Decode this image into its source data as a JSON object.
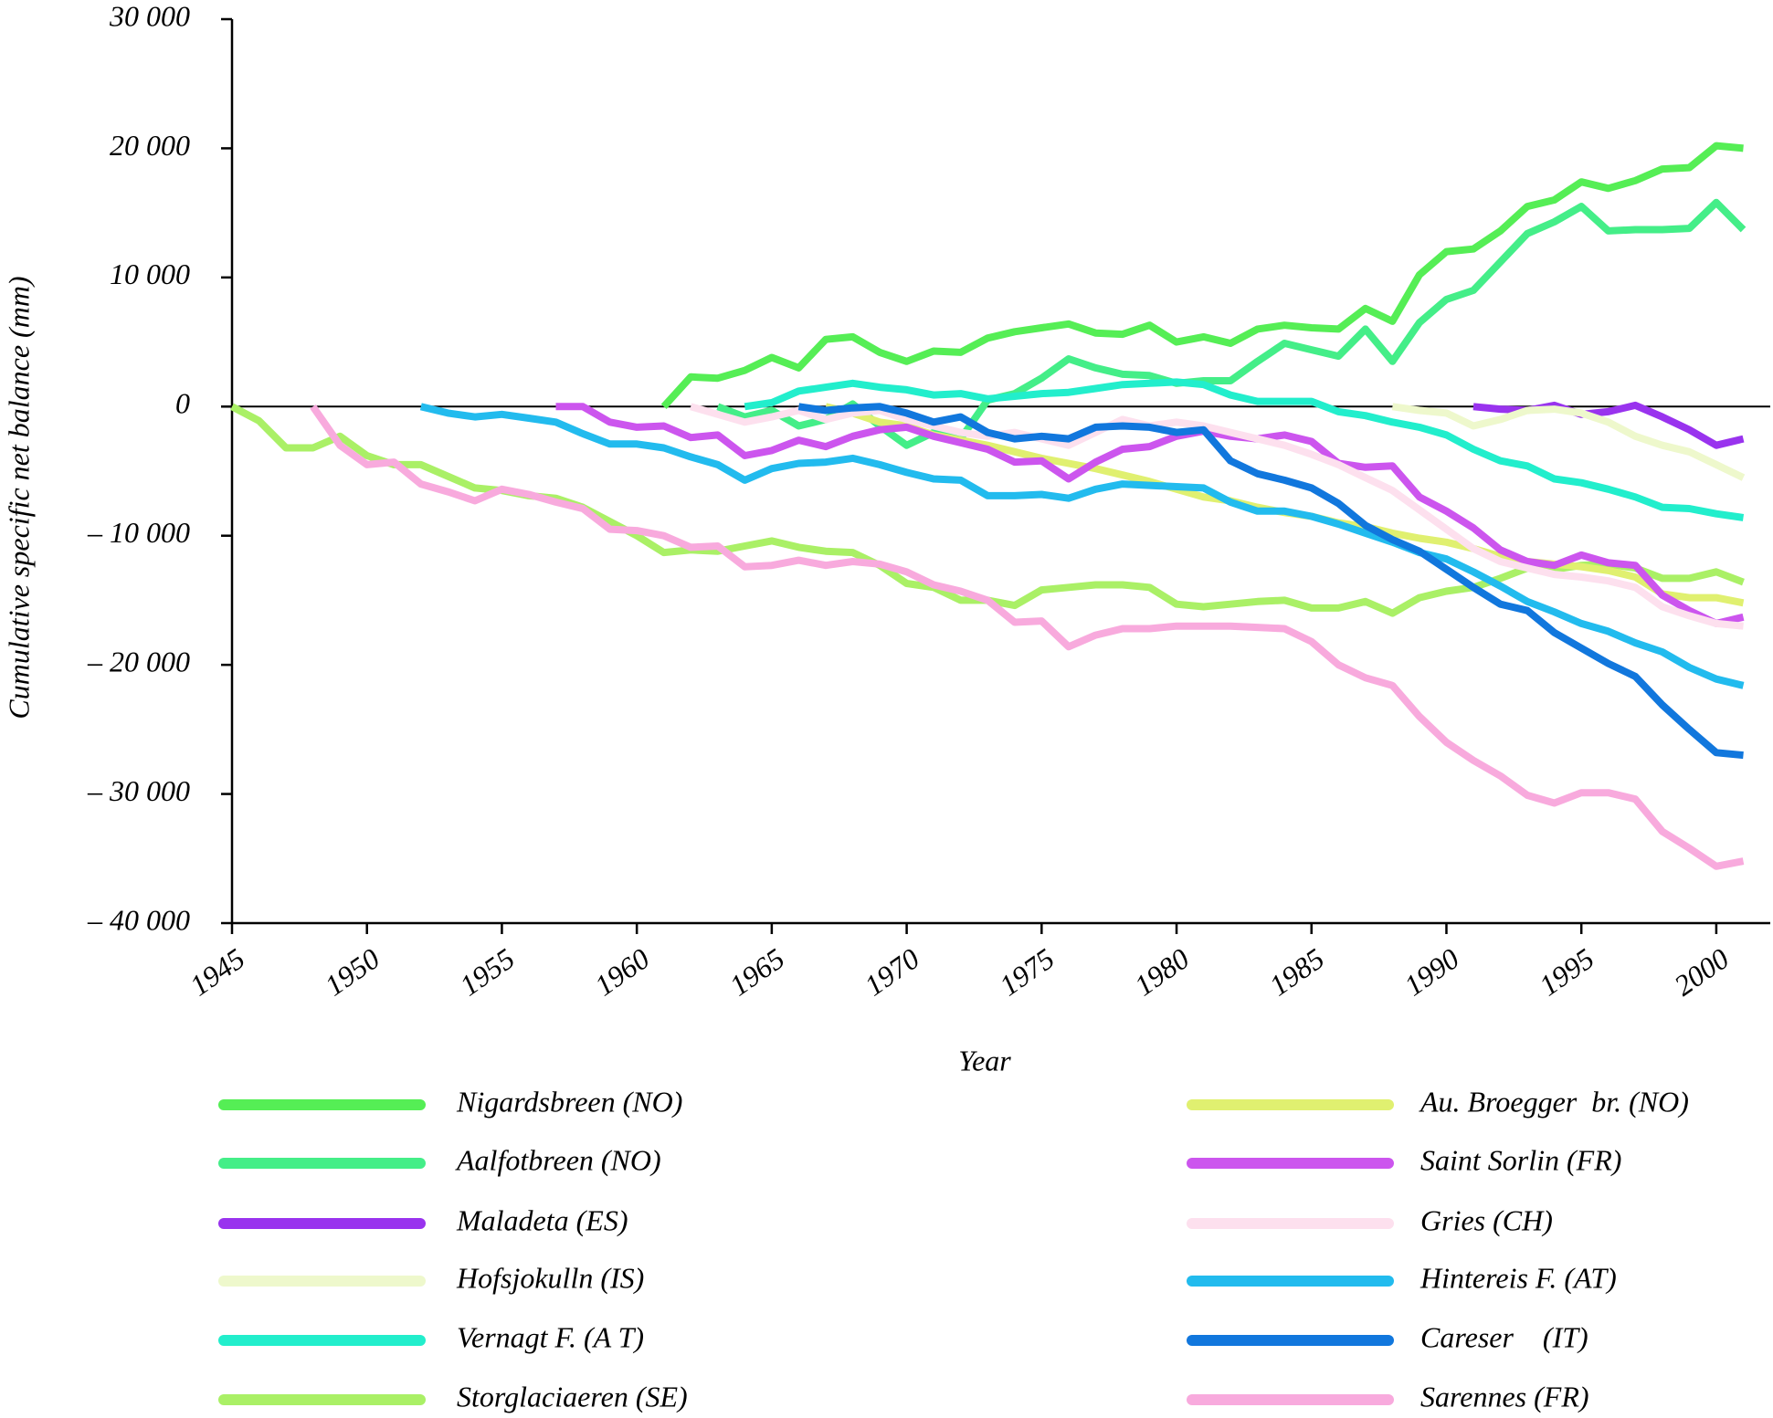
{
  "chart_data": {
    "type": "line",
    "x_label": "Year",
    "y_label": "Cumulative specific net balance (mm)",
    "x": [
      1945,
      1946,
      1947,
      1948,
      1949,
      1950,
      1951,
      1952,
      1953,
      1954,
      1955,
      1956,
      1957,
      1958,
      1959,
      1960,
      1961,
      1962,
      1963,
      1964,
      1965,
      1966,
      1967,
      1968,
      1969,
      1970,
      1971,
      1972,
      1973,
      1974,
      1975,
      1976,
      1977,
      1978,
      1979,
      1980,
      1981,
      1982,
      1983,
      1984,
      1985,
      1986,
      1987,
      1988,
      1989,
      1990,
      1991,
      1992,
      1993,
      1994,
      1995,
      1996,
      1997,
      1998,
      1999,
      2000,
      2001
    ],
    "xlim": [
      1945,
      2002
    ],
    "xticks": [
      1945,
      1950,
      1955,
      1960,
      1965,
      1970,
      1975,
      1980,
      1985,
      1990,
      1995,
      2000
    ],
    "ylim": [
      -40000,
      30000
    ],
    "yticks": [
      {
        "value": 30000,
        "label": "30 000"
      },
      {
        "value": 20000,
        "label": "20 000"
      },
      {
        "value": 10000,
        "label": "10 000"
      },
      0,
      {
        "value": -10000,
        "label": "– 10 000"
      },
      {
        "value": -20000,
        "label": "– 20 000"
      },
      {
        "value": -30000,
        "label": "– 30 000"
      },
      {
        "value": -40000,
        "label": "– 40 000"
      }
    ],
    "zero_line": true,
    "series": [
      {
        "name": "Nigardsbreen (NO)",
        "color": "#55ee55",
        "values": [
          null,
          null,
          null,
          null,
          null,
          null,
          null,
          null,
          null,
          null,
          null,
          null,
          null,
          null,
          null,
          null,
          0,
          2300,
          2200,
          2800,
          3800,
          3000,
          5200,
          5400,
          4200,
          3500,
          4300,
          4200,
          5300,
          5800,
          6100,
          6400,
          5700,
          5600,
          6300,
          5000,
          5400,
          4900,
          6000,
          6300,
          6100,
          6000,
          7600,
          6600,
          10200,
          12000,
          12200,
          13600,
          15500,
          16000,
          17400,
          16900,
          17500,
          18400,
          18500,
          20200,
          20000
        ]
      },
      {
        "name": "Aalfotbreen (NO)",
        "color": "#44ee88",
        "values": [
          null,
          null,
          null,
          null,
          null,
          null,
          null,
          null,
          null,
          null,
          null,
          null,
          null,
          null,
          null,
          null,
          null,
          null,
          0,
          -800,
          -300,
          -1500,
          -1000,
          200,
          -1500,
          -3000,
          -2000,
          -2500,
          500,
          1000,
          2200,
          3700,
          3000,
          2500,
          2400,
          1800,
          2000,
          2000,
          3500,
          4900,
          4400,
          3900,
          6000,
          3500,
          6500,
          8300,
          9000,
          11200,
          13400,
          14300,
          15500,
          13600,
          13700,
          13700,
          13800,
          15800,
          13700
        ]
      },
      {
        "name": "Maladeta (ES)",
        "color": "#9933ee",
        "values": [
          null,
          null,
          null,
          null,
          null,
          null,
          null,
          null,
          null,
          null,
          null,
          null,
          null,
          null,
          null,
          null,
          null,
          null,
          null,
          null,
          null,
          null,
          null,
          null,
          null,
          null,
          null,
          null,
          null,
          null,
          null,
          null,
          null,
          null,
          null,
          null,
          null,
          null,
          null,
          null,
          null,
          null,
          null,
          null,
          null,
          null,
          0,
          -200,
          -300,
          100,
          -600,
          -400,
          100,
          -800,
          -1800,
          -3000,
          -2500
        ]
      },
      {
        "name": "Hofsjokulln (IS)",
        "color": "#eef8cc",
        "values": [
          null,
          null,
          null,
          null,
          null,
          null,
          null,
          null,
          null,
          null,
          null,
          null,
          null,
          null,
          null,
          null,
          null,
          null,
          null,
          null,
          null,
          null,
          null,
          null,
          null,
          null,
          null,
          null,
          null,
          null,
          null,
          null,
          null,
          null,
          null,
          null,
          null,
          null,
          null,
          null,
          null,
          null,
          null,
          0,
          -300,
          -500,
          -1500,
          -1000,
          -300,
          -200,
          -500,
          -1200,
          -2300,
          -3000,
          -3500,
          -4500,
          -5500
        ]
      },
      {
        "name": "Vernagt F. (A T)",
        "color": "#22eecc",
        "values": [
          null,
          null,
          null,
          null,
          null,
          null,
          null,
          null,
          null,
          null,
          null,
          null,
          null,
          null,
          null,
          null,
          null,
          null,
          null,
          0,
          300,
          1200,
          1500,
          1800,
          1500,
          1300,
          900,
          1000,
          600,
          800,
          1000,
          1100,
          1400,
          1700,
          1800,
          1900,
          1700,
          900,
          400,
          400,
          400,
          -400,
          -700,
          -1200,
          -1600,
          -2200,
          -3300,
          -4200,
          -4600,
          -5600,
          -5900,
          -6400,
          -7000,
          -7800,
          -7900,
          -8300,
          -8600
        ]
      },
      {
        "name": "Storglaciaeren (SE)",
        "color": "#aaf066",
        "values": [
          0,
          -1100,
          -3200,
          -3200,
          -2300,
          -3800,
          -4500,
          -4500,
          -5400,
          -6300,
          -6500,
          -6900,
          -7100,
          -7800,
          -8900,
          -10000,
          -11300,
          -11100,
          -11200,
          -10800,
          -10400,
          -10900,
          -11200,
          -11300,
          -12300,
          -13700,
          -14000,
          -15000,
          -15000,
          -15400,
          -14200,
          -14000,
          -13800,
          -13800,
          -14000,
          -15300,
          -15500,
          -15300,
          -15100,
          -15000,
          -15600,
          -15600,
          -15100,
          -16000,
          -14800,
          -14300,
          -14000,
          -13300,
          -12500,
          -12600,
          -12300,
          -12200,
          -12500,
          -13300,
          -13300,
          -12800,
          -13600
        ]
      },
      {
        "name": "Au. Broegger  br. (NO)",
        "color": "#e0f070",
        "values": [
          null,
          null,
          null,
          null,
          null,
          null,
          null,
          null,
          null,
          null,
          null,
          null,
          null,
          null,
          null,
          null,
          null,
          null,
          null,
          null,
          null,
          null,
          0,
          -500,
          -1200,
          -1500,
          -2200,
          -2600,
          -3000,
          -3500,
          -4000,
          -4400,
          -4800,
          -5300,
          -5800,
          -6400,
          -7000,
          -7300,
          -7800,
          -8200,
          -8500,
          -9000,
          -9300,
          -9800,
          -10200,
          -10500,
          -11000,
          -11600,
          -12000,
          -12200,
          -12400,
          -12700,
          -13200,
          -14500,
          -14800,
          -14800,
          -15200
        ]
      },
      {
        "name": "Saint Sorlin (FR)",
        "color": "#cc55ee",
        "values": [
          null,
          null,
          null,
          null,
          null,
          null,
          null,
          null,
          null,
          null,
          null,
          null,
          0,
          0,
          -1200,
          -1600,
          -1500,
          -2400,
          -2200,
          -3800,
          -3400,
          -2600,
          -3100,
          -2300,
          -1800,
          -1600,
          -2300,
          -2800,
          -3300,
          -4300,
          -4200,
          -5600,
          -4300,
          -3300,
          -3100,
          -2300,
          -1900,
          -2300,
          -2500,
          -2200,
          -2700,
          -4400,
          -4700,
          -4600,
          -7000,
          -8100,
          -9400,
          -11100,
          -12000,
          -12300,
          -11500,
          -12100,
          -12300,
          -14600,
          -15800,
          -16800,
          -16300
        ]
      },
      {
        "name": "Gries (CH)",
        "color": "#fde0ee",
        "values": [
          null,
          null,
          null,
          null,
          null,
          null,
          null,
          null,
          null,
          null,
          null,
          null,
          null,
          null,
          null,
          null,
          null,
          0,
          -600,
          -1200,
          -800,
          -300,
          -1000,
          -500,
          -300,
          -1000,
          -1500,
          -2000,
          -2300,
          -2000,
          -2500,
          -3000,
          -2000,
          -1000,
          -1500,
          -1200,
          -1500,
          -2000,
          -2500,
          -3000,
          -3700,
          -4500,
          -5500,
          -6500,
          -8000,
          -9500,
          -11000,
          -12000,
          -12500,
          -13000,
          -13200,
          -13500,
          -14000,
          -15500,
          -16200,
          -16800,
          -17000
        ]
      },
      {
        "name": "Hintereis F. (AT)",
        "color": "#22bbee",
        "values": [
          null,
          null,
          null,
          null,
          null,
          null,
          null,
          0,
          -500,
          -800,
          -600,
          -900,
          -1200,
          -2100,
          -2900,
          -2900,
          -3200,
          -3900,
          -4500,
          -5700,
          -4800,
          -4400,
          -4300,
          -4000,
          -4500,
          -5100,
          -5600,
          -5700,
          -6900,
          -6900,
          -6800,
          -7100,
          -6400,
          -6000,
          -6100,
          -6200,
          -6300,
          -7400,
          -8100,
          -8100,
          -8500,
          -9100,
          -9800,
          -10500,
          -11300,
          -11800,
          -12800,
          -13900,
          -15100,
          -15900,
          -16800,
          -17400,
          -18300,
          -19000,
          -20200,
          -21100,
          -21600
        ]
      },
      {
        "name": "Careser    (IT)",
        "color": "#1177dd",
        "values": [
          null,
          null,
          null,
          null,
          null,
          null,
          null,
          null,
          null,
          null,
          null,
          null,
          null,
          null,
          null,
          null,
          null,
          null,
          null,
          null,
          null,
          0,
          -300,
          -100,
          0,
          -500,
          -1200,
          -800,
          -2000,
          -2500,
          -2300,
          -2500,
          -1600,
          -1500,
          -1600,
          -2000,
          -1800,
          -4200,
          -5200,
          -5700,
          -6300,
          -7500,
          -9200,
          -10300,
          -11200,
          -12600,
          -14000,
          -15300,
          -15800,
          -17500,
          -18700,
          -19900,
          -20900,
          -23100,
          -25000,
          -26800,
          -27000
        ]
      },
      {
        "name": "Sarennes (FR)",
        "color": "#f8aadd",
        "values": [
          null,
          null,
          null,
          0,
          -3000,
          -4500,
          -4300,
          -6000,
          -6600,
          -7300,
          -6400,
          -6800,
          -7400,
          -7900,
          -9500,
          -9600,
          -10000,
          -10900,
          -10800,
          -12400,
          -12300,
          -11900,
          -12300,
          -12000,
          -12200,
          -12800,
          -13800,
          -14300,
          -15000,
          -16700,
          -16600,
          -18600,
          -17700,
          -17200,
          -17200,
          -17000,
          -17000,
          -17000,
          -17100,
          -17200,
          -18200,
          -20000,
          -21000,
          -21600,
          -24000,
          -26000,
          -27400,
          -28600,
          -30100,
          -30700,
          -29900,
          -29900,
          -30400,
          -32900,
          -34200,
          -35600,
          -35200
        ]
      }
    ]
  }
}
